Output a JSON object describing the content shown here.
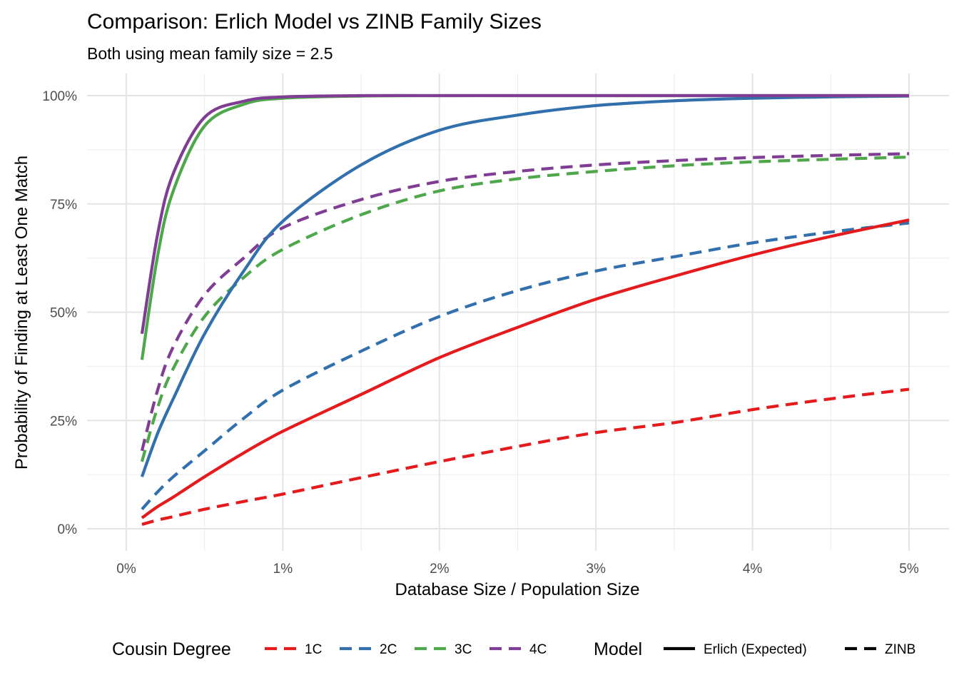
{
  "chart_data": {
    "type": "line",
    "title": "Comparison: Erlich Model vs ZINB Family Sizes",
    "subtitle": "Both using mean family size = 2.5",
    "xlabel": "Database Size / Population Size",
    "ylabel": "Probability of Finding at Least One Match",
    "xlim": [
      0,
      0.05
    ],
    "ylim": [
      0,
      1
    ],
    "x_ticks": [
      0,
      0.01,
      0.02,
      0.03,
      0.04,
      0.05
    ],
    "x_tick_labels": [
      "0%",
      "1%",
      "2%",
      "3%",
      "4%",
      "5%"
    ],
    "y_ticks": [
      0,
      0.25,
      0.5,
      0.75,
      1
    ],
    "y_tick_labels": [
      "0%",
      "25%",
      "50%",
      "75%",
      "100%"
    ],
    "grid": true,
    "x": [
      0.001,
      0.002,
      0.003,
      0.005,
      0.0075,
      0.01,
      0.015,
      0.02,
      0.025,
      0.03,
      0.035,
      0.04,
      0.045,
      0.05
    ],
    "series": [
      {
        "name": "1C",
        "model": "Erlich (Expected)",
        "color": "#e41a1c",
        "dashed": false,
        "values": [
          0.025,
          0.051,
          0.073,
          0.12,
          0.175,
          0.225,
          0.31,
          0.395,
          0.465,
          0.53,
          0.583,
          0.632,
          0.675,
          0.713
        ]
      },
      {
        "name": "1C",
        "model": "ZINB",
        "color": "#e41a1c",
        "dashed": true,
        "values": [
          0.01,
          0.02,
          0.028,
          0.045,
          0.063,
          0.08,
          0.118,
          0.155,
          0.19,
          0.222,
          0.245,
          0.275,
          0.3,
          0.322
        ]
      },
      {
        "name": "2C",
        "model": "Erlich (Expected)",
        "color": "#3170ad",
        "dashed": false,
        "values": [
          0.12,
          0.22,
          0.3,
          0.45,
          0.595,
          0.71,
          0.84,
          0.92,
          0.955,
          0.977,
          0.988,
          0.994,
          0.997,
          0.999
        ]
      },
      {
        "name": "2C",
        "model": "ZINB",
        "color": "#3170ad",
        "dashed": true,
        "values": [
          0.045,
          0.085,
          0.12,
          0.18,
          0.255,
          0.32,
          0.41,
          0.49,
          0.55,
          0.595,
          0.628,
          0.66,
          0.685,
          0.706
        ]
      },
      {
        "name": "3C",
        "model": "Erlich (Expected)",
        "color": "#4ea74a",
        "dashed": false,
        "values": [
          0.39,
          0.63,
          0.78,
          0.93,
          0.98,
          0.994,
          0.999,
          1.0,
          1.0,
          1.0,
          1.0,
          1.0,
          1.0,
          1.0
        ]
      },
      {
        "name": "3C",
        "model": "ZINB",
        "color": "#4ea74a",
        "dashed": true,
        "values": [
          0.155,
          0.28,
          0.37,
          0.49,
          0.58,
          0.645,
          0.725,
          0.78,
          0.808,
          0.825,
          0.838,
          0.847,
          0.853,
          0.858
        ]
      },
      {
        "name": "4C",
        "model": "Erlich (Expected)",
        "color": "#7f3d93",
        "dashed": false,
        "values": [
          0.45,
          0.68,
          0.82,
          0.95,
          0.987,
          0.997,
          1.0,
          1.0,
          1.0,
          1.0,
          1.0,
          1.0,
          1.0,
          1.0
        ]
      },
      {
        "name": "4C",
        "model": "ZINB",
        "color": "#7f3d93",
        "dashed": true,
        "values": [
          0.18,
          0.32,
          0.42,
          0.54,
          0.625,
          0.695,
          0.76,
          0.802,
          0.825,
          0.84,
          0.85,
          0.857,
          0.862,
          0.866
        ]
      }
    ],
    "legend": {
      "placement": "bottom",
      "color_title": "Cousin Degree",
      "color_items": [
        {
          "label": "1C",
          "color": "#e41a1c"
        },
        {
          "label": "2C",
          "color": "#3170ad"
        },
        {
          "label": "3C",
          "color": "#4ea74a"
        },
        {
          "label": "4C",
          "color": "#7f3d93"
        }
      ],
      "linetype_title": "Model",
      "linetype_items": [
        {
          "label": "Erlich (Expected)",
          "dashed": false
        },
        {
          "label": "ZINB",
          "dashed": true
        }
      ]
    }
  }
}
